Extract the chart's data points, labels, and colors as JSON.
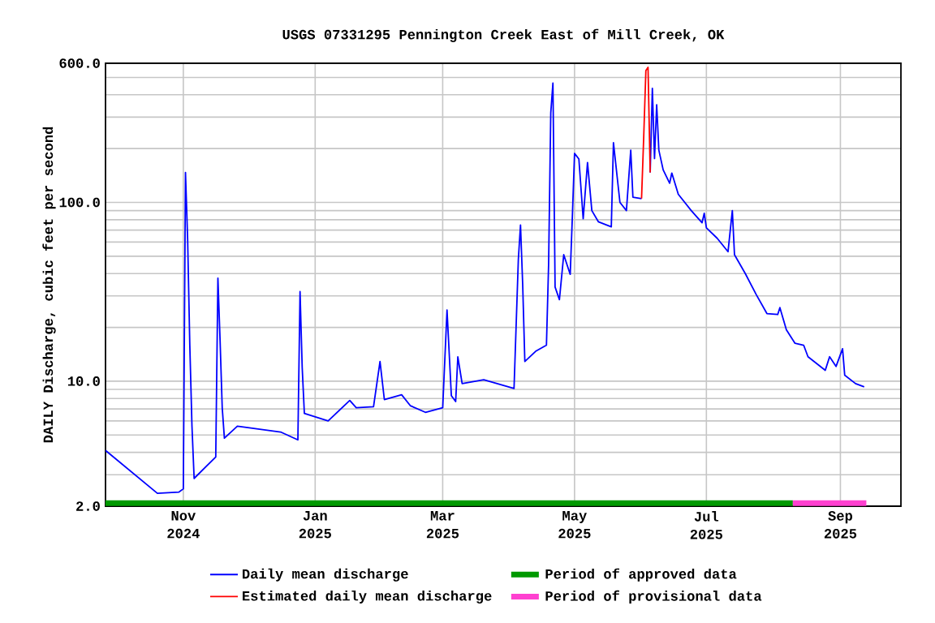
{
  "chart_data": {
    "type": "line",
    "title": "USGS 07331295 Pennington Creek East of Mill Creek, OK",
    "ylabel": "DAILY Discharge, cubic feet per second",
    "log": "y",
    "grid": true,
    "legend": "bottom",
    "xlim": [
      "2024-09-26",
      "2025-09-29"
    ],
    "xticks": [
      {
        "value": "2024-11-01",
        "label": "Nov 2024"
      },
      {
        "value": "2025-01-01",
        "label": "Jan 2025"
      },
      {
        "value": "2025-03-01",
        "label": "Mar 2025"
      },
      {
        "value": "2025-05-01",
        "label": "May 2025"
      },
      {
        "value": "2025-07-01",
        "label": "Jul 2025"
      },
      {
        "value": "2025-09-01",
        "label": "Sep 2025"
      }
    ],
    "ylim": [
      2,
      600
    ],
    "yticks": [
      {
        "value": 2,
        "label": "2.0"
      },
      {
        "value": 3,
        "label": null
      },
      {
        "value": 4,
        "label": null
      },
      {
        "value": 5,
        "label": null
      },
      {
        "value": 6,
        "label": null
      },
      {
        "value": 7,
        "label": null
      },
      {
        "value": 8,
        "label": null
      },
      {
        "value": 9,
        "label": null
      },
      {
        "value": 10,
        "label": "10.0"
      },
      {
        "value": 20,
        "label": null
      },
      {
        "value": 30,
        "label": null
      },
      {
        "value": 40,
        "label": null
      },
      {
        "value": 50,
        "label": null
      },
      {
        "value": 60,
        "label": null
      },
      {
        "value": 70,
        "label": null
      },
      {
        "value": 80,
        "label": null
      },
      {
        "value": 90,
        "label": null
      },
      {
        "value": 100,
        "label": "100.0"
      },
      {
        "value": 200,
        "label": null
      },
      {
        "value": 300,
        "label": null
      },
      {
        "value": 400,
        "label": null
      },
      {
        "value": 500,
        "label": null
      },
      {
        "value": 600,
        "label": "600.0"
      }
    ],
    "series": [
      {
        "name": "Daily mean discharge",
        "color": "#0000ff",
        "x": [
          "2024-09-26",
          "2024-10-20",
          "2024-10-30",
          "2024-11-01",
          "2024-11-02",
          "2024-11-03",
          "2024-11-04",
          "2024-11-05",
          "2024-11-06",
          "2024-11-16",
          "2024-11-17",
          "2024-11-18",
          "2024-11-19",
          "2024-11-20",
          "2024-11-26",
          "2024-12-16",
          "2024-12-24",
          "2024-12-25",
          "2024-12-26",
          "2024-12-27",
          "2025-01-07",
          "2025-01-17",
          "2025-01-20",
          "2025-01-28",
          "2025-01-31",
          "2025-02-02",
          "2025-02-10",
          "2025-02-14",
          "2025-02-21",
          "2025-03-01",
          "2025-03-03",
          "2025-03-05",
          "2025-03-07",
          "2025-03-08",
          "2025-03-10",
          "2025-03-20",
          "2025-04-03",
          "2025-04-05",
          "2025-04-06",
          "2025-04-07",
          "2025-04-08",
          "2025-04-13",
          "2025-04-18",
          "2025-04-19",
          "2025-04-20",
          "2025-04-21",
          "2025-04-22",
          "2025-04-24",
          "2025-04-26",
          "2025-04-29",
          "2025-04-30",
          "2025-05-01",
          "2025-05-03",
          "2025-05-05",
          "2025-05-07",
          "2025-05-09",
          "2025-05-12",
          "2025-05-18",
          "2025-05-19",
          "2025-05-22",
          "2025-05-25",
          "2025-05-27",
          "2025-05-28",
          "2025-06-01",
          "2025-06-02",
          "2025-06-05",
          "2025-06-06",
          "2025-06-07",
          "2025-06-08",
          "2025-06-09",
          "2025-06-11",
          "2025-06-14",
          "2025-06-15",
          "2025-06-18",
          "2025-06-24",
          "2025-06-29",
          "2025-06-30",
          "2025-07-01",
          "2025-07-06",
          "2025-07-11",
          "2025-07-13",
          "2025-07-14",
          "2025-07-19",
          "2025-07-24",
          "2025-07-29",
          "2025-08-03",
          "2025-08-04",
          "2025-08-07",
          "2025-08-11",
          "2025-08-15",
          "2025-08-17",
          "2025-08-25",
          "2025-08-27",
          "2025-08-30",
          "2025-09-02",
          "2025-09-03",
          "2025-09-08",
          "2025-09-12"
        ],
        "values": [
          4.1,
          2.36,
          2.4,
          2.5,
          147,
          62,
          15.9,
          5.6,
          2.86,
          3.77,
          37.7,
          17,
          7.1,
          4.8,
          5.6,
          5.2,
          4.7,
          31.7,
          11.9,
          6.6,
          6.0,
          7.8,
          7.1,
          7.2,
          12.9,
          7.9,
          8.4,
          7.3,
          6.7,
          7.1,
          25,
          8.3,
          7.7,
          13.7,
          9.7,
          10.2,
          9.1,
          48,
          74.8,
          35,
          12.9,
          14.7,
          15.9,
          45,
          317,
          465,
          33.6,
          28.6,
          51,
          39.6,
          84,
          188,
          175,
          81,
          167,
          90,
          78,
          73,
          216,
          100,
          90,
          196,
          107,
          105,
          null,
          147,
          434,
          176,
          352,
          196,
          152,
          128,
          146,
          111,
          90,
          77,
          87,
          72,
          63,
          53,
          90,
          51,
          40,
          30.6,
          23.9,
          23.6,
          25.8,
          19.4,
          16.3,
          15.9,
          13.7,
          11.5,
          13.7,
          12.1,
          15.2,
          10.8,
          9.7,
          9.3
        ]
      },
      {
        "name": "Estimated daily mean discharge",
        "color": "#ff0000",
        "x": [
          "2025-06-01",
          "2025-06-02",
          "2025-06-03",
          "2025-06-04",
          "2025-06-05"
        ],
        "values": [
          105,
          232,
          546,
          570,
          147
        ]
      },
      {
        "name": "Period of approved data",
        "color": "#009900",
        "x": [
          "2024-09-26",
          "2025-08-10"
        ],
        "values": [
          2.08,
          2.08
        ]
      },
      {
        "name": "Period of provisional data",
        "color": "#ff40d0",
        "x": [
          "2025-08-10",
          "2025-09-13"
        ],
        "values": [
          2.08,
          2.08
        ]
      }
    ]
  }
}
